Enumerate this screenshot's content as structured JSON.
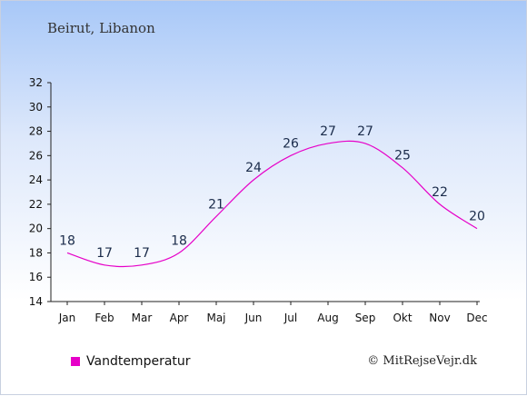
{
  "header": {
    "location": "Beirut, Libanon"
  },
  "footer": {
    "copyright": "© MitRejseVejr.dk"
  },
  "chart_data": {
    "type": "line",
    "categories": [
      "Jan",
      "Feb",
      "Mar",
      "Apr",
      "Maj",
      "Jun",
      "Jul",
      "Aug",
      "Sep",
      "Okt",
      "Nov",
      "Dec"
    ],
    "series": [
      {
        "name": "Vandtemperatur",
        "values": [
          18,
          17,
          17,
          18,
          21,
          24,
          26,
          27,
          27,
          25,
          22,
          20
        ],
        "color": "#e600c8"
      }
    ],
    "ylim": [
      14,
      32
    ],
    "yticks": [
      14,
      16,
      18,
      20,
      22,
      24,
      26,
      28,
      30,
      32
    ],
    "grid": false,
    "legend_position": "bottom-left"
  }
}
